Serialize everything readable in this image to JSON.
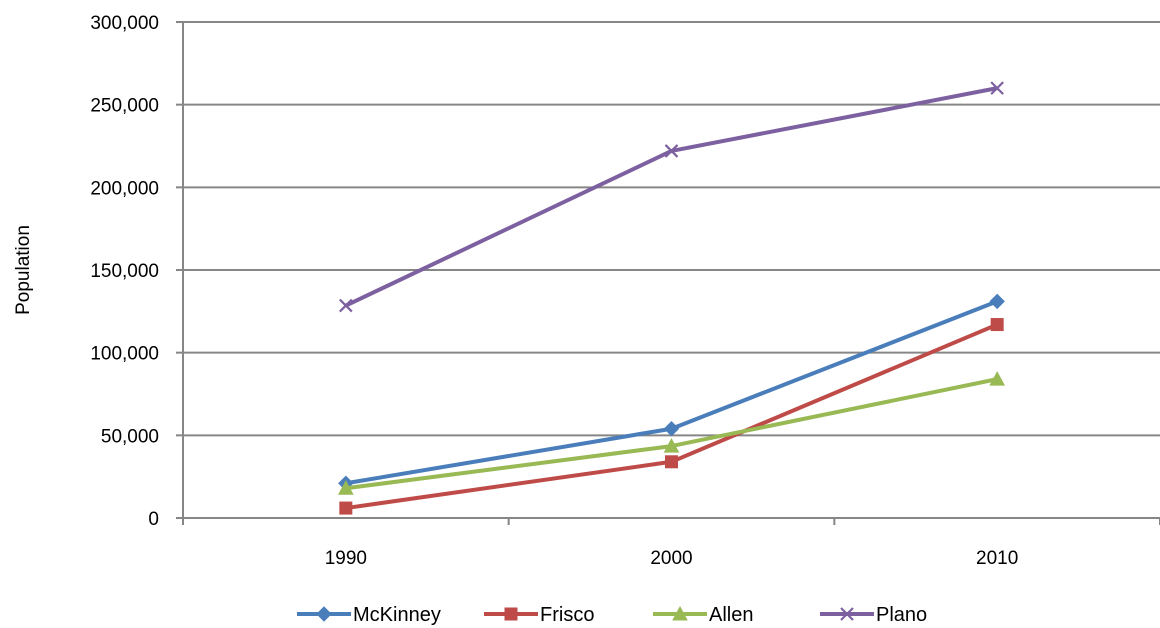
{
  "chart_data": {
    "type": "line",
    "title": "",
    "xlabel": "",
    "ylabel": "Population",
    "categories": [
      "1990",
      "2000",
      "2010"
    ],
    "ylim": [
      0,
      300000
    ],
    "yticks": [
      0,
      50000,
      100000,
      150000,
      200000,
      250000,
      300000
    ],
    "ytick_labels": [
      "0",
      "50,000",
      "100,000",
      "150,000",
      "200,000",
      "250,000",
      "300,000"
    ],
    "grid": true,
    "legend_position": "bottom",
    "series": [
      {
        "name": "McKinney",
        "values": [
          21000,
          54000,
          131000
        ],
        "color": "#4a7ebb",
        "marker": "diamond"
      },
      {
        "name": "Frisco",
        "values": [
          6000,
          34000,
          117000
        ],
        "color": "#be4b48",
        "marker": "square"
      },
      {
        "name": "Allen",
        "values": [
          18000,
          43500,
          84000
        ],
        "color": "#98b954",
        "marker": "triangle"
      },
      {
        "name": "Plano",
        "values": [
          128500,
          222000,
          260000
        ],
        "color": "#7d60a0",
        "marker": "x"
      }
    ]
  }
}
